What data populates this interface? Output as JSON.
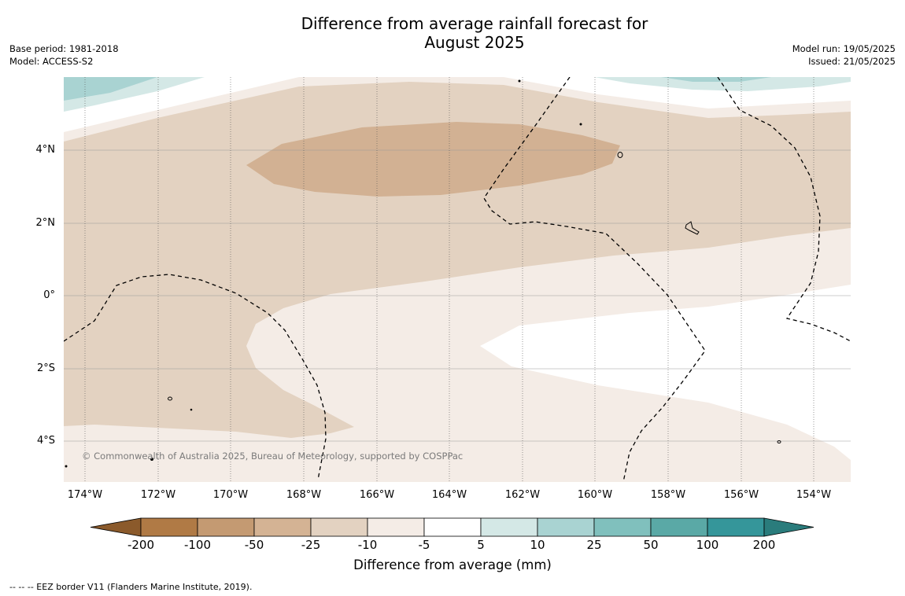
{
  "header": {
    "title_line1": "Difference from average rainfall forecast for",
    "title_line2": "August 2025",
    "base_period": "Base period: 1981-2018",
    "model": "Model: ACCESS-S2",
    "model_run": "Model run: 19/05/2025",
    "issued": "Issued: 21/05/2025"
  },
  "map": {
    "lat_labels": [
      "4°N",
      "2°N",
      "0°",
      "2°S",
      "4°S"
    ],
    "lon_labels": [
      "174°W",
      "172°W",
      "170°W",
      "168°W",
      "166°W",
      "164°W",
      "162°W",
      "160°W",
      "158°W",
      "156°W",
      "154°W"
    ],
    "copyright": "© Commonwealth of Australia 2025, Bureau of Meteorology, supported by COSPPac"
  },
  "colorbar": {
    "labels": [
      "-200",
      "-100",
      "-50",
      "-25",
      "-10",
      "-5",
      "5",
      "10",
      "25",
      "50",
      "100",
      "200"
    ],
    "colors": [
      "#8b5a2b",
      "#b07a45",
      "#c49a72",
      "#d4b394",
      "#e3d2c1",
      "#f4ece6",
      "#ffffff",
      "#d4e8e6",
      "#a9d3d2",
      "#80c0bd",
      "#5aa9a6",
      "#35969a",
      "#2a7c7c"
    ],
    "title": "Difference from average (mm)"
  },
  "footer": {
    "legend_text": "--  --  -- EEZ border V11 (Flanders Marine Institute, 2019)."
  }
}
